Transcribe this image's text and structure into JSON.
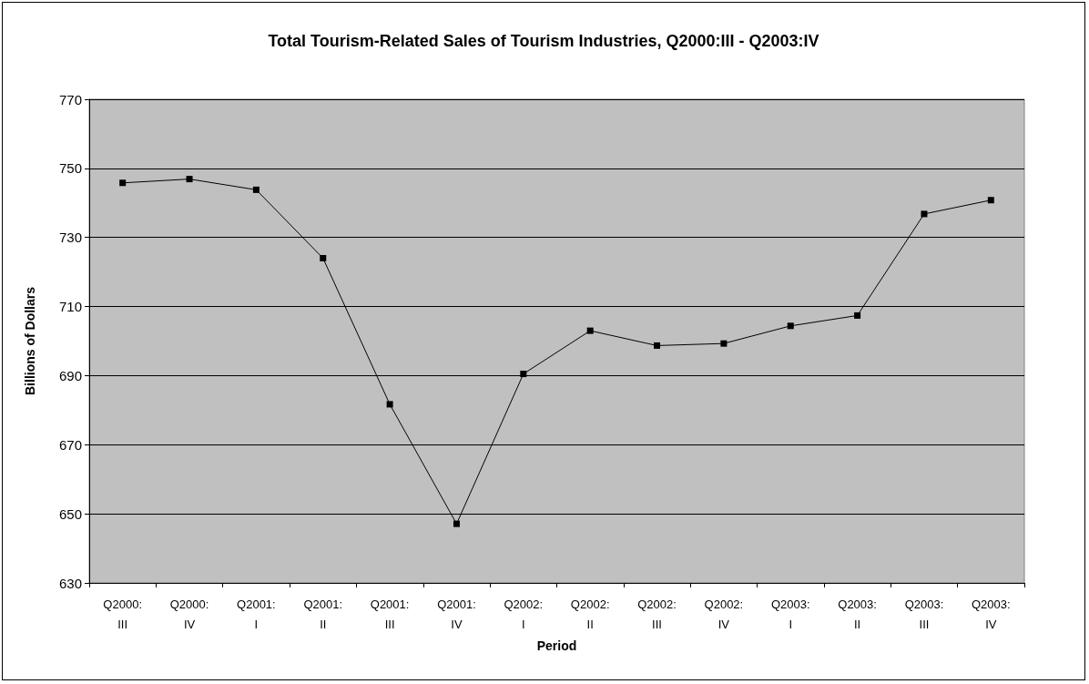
{
  "chart_data": {
    "type": "line",
    "title": "Total Tourism-Related Sales of Tourism Industries, Q2000:III - Q2003:IV",
    "xlabel": "Period",
    "ylabel": "Billions of Dollars",
    "categories": [
      "Q2000:\nIII",
      "Q2000:\nIV",
      "Q2001:\nI",
      "Q2001:\nII",
      "Q2001:\nIII",
      "Q2001:\nIV",
      "Q2002:\nI",
      "Q2002:\nII",
      "Q2002:\nIII",
      "Q2002:\nIV",
      "Q2003:\nI",
      "Q2003:\nII",
      "Q2003:\nIII",
      "Q2003:\nIV"
    ],
    "series": [
      {
        "color": "#000000",
        "values": [
          745.8,
          746.9,
          743.8,
          724.0,
          681.7,
          647.1,
          690.5,
          703.0,
          698.7,
          699.3,
          704.4,
          707.4,
          736.8,
          740.8
        ]
      }
    ],
    "ylim": [
      630,
      770
    ],
    "yticks": [
      630,
      650,
      670,
      690,
      710,
      730,
      750,
      770
    ],
    "grid": "y",
    "marker": "square",
    "line_style": "solid"
  }
}
